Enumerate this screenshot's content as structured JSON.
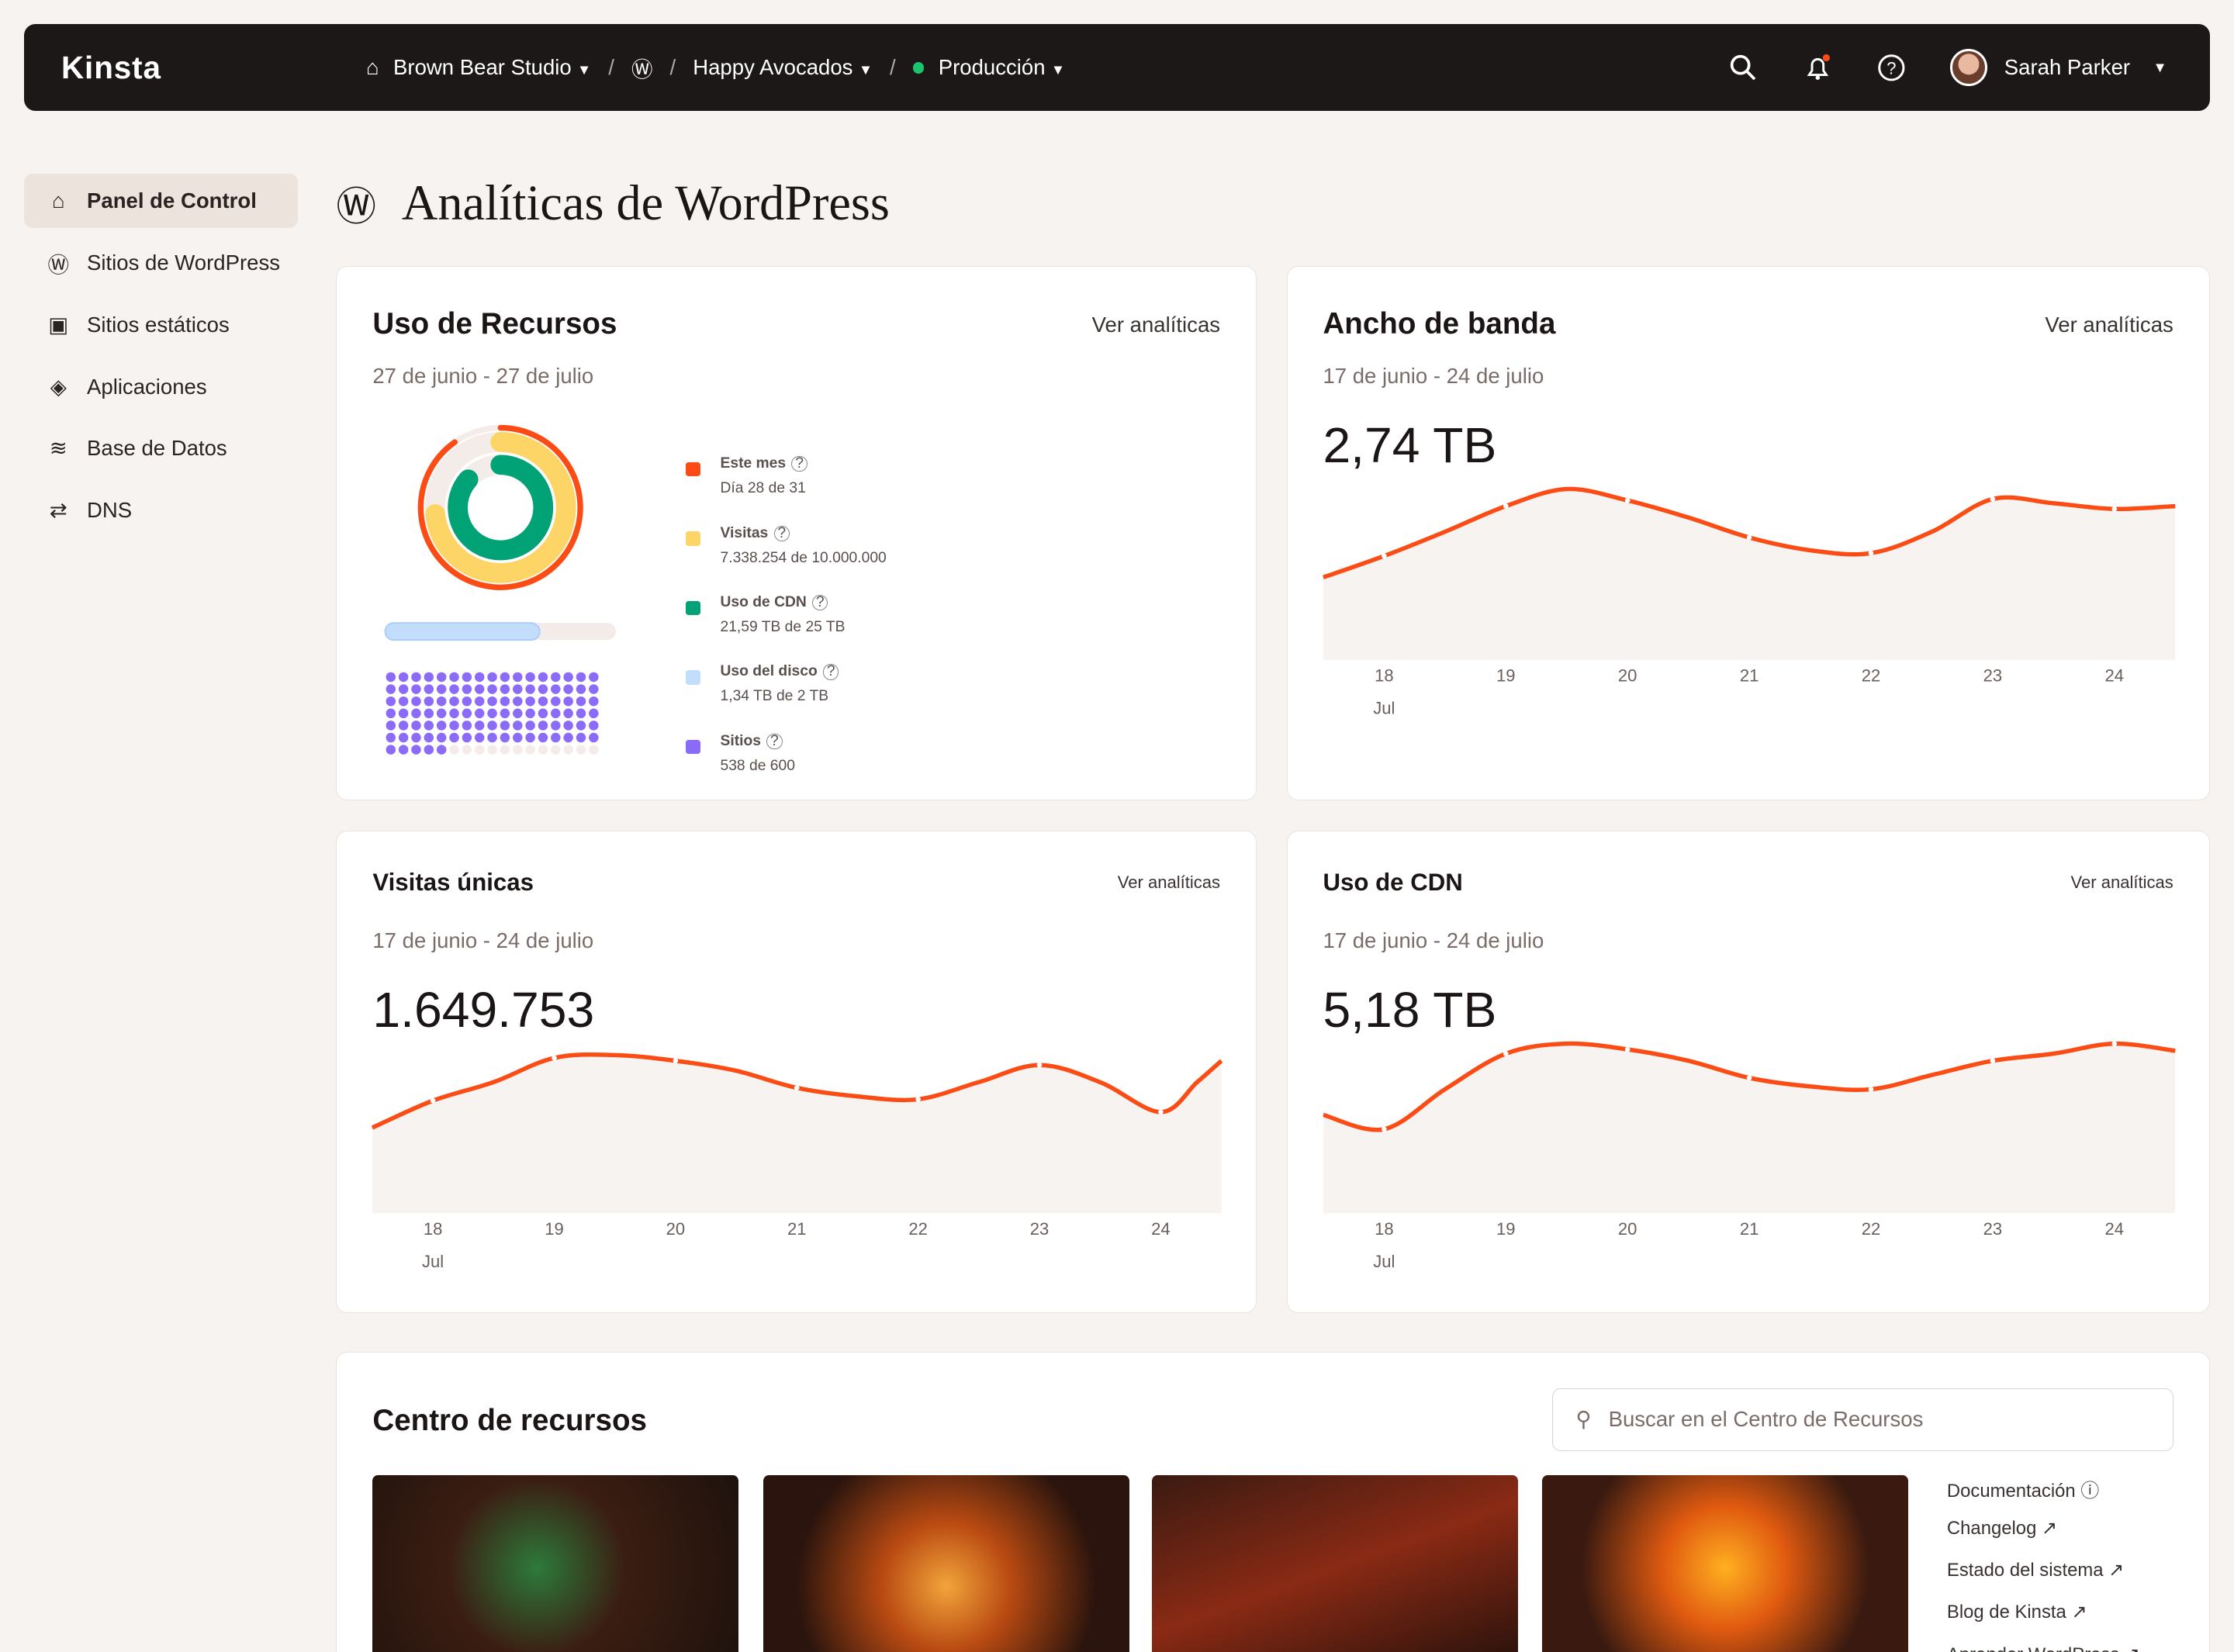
{
  "topbar": {
    "logo": "Kinsta",
    "company": "Brown Bear Studio",
    "site": "Happy Avocados",
    "env": "Producción",
    "user": "Sarah Parker"
  },
  "sidebar": {
    "items": [
      {
        "label": "Panel de Control",
        "icon": "home-icon",
        "active": true
      },
      {
        "label": "Sitios de WordPress",
        "icon": "wordpress-icon"
      },
      {
        "label": "Sitios estáticos",
        "icon": "static-site-icon"
      },
      {
        "label": "Aplicaciones",
        "icon": "layers-icon"
      },
      {
        "label": "Base de Datos",
        "icon": "database-icon"
      },
      {
        "label": "DNS",
        "icon": "dns-icon"
      }
    ]
  },
  "page": {
    "title": "Analíticas de WordPress"
  },
  "resources": {
    "title": "Uso de Recursos",
    "range": "27 de junio - 27 de julio",
    "link": "Ver analíticas",
    "legend": [
      {
        "label": "Este mes",
        "detail": "Día 28 de 31",
        "color": "#fa4c14",
        "fraction": 0.903
      },
      {
        "label": "Visitas",
        "detail": "7.338.254 de 10.000.000",
        "color": "#fdd567",
        "fraction": 0.734
      },
      {
        "label": "Uso de CDN",
        "detail": "21,59 TB de 25 TB",
        "color": "#02a277",
        "fraction": 0.864
      },
      {
        "label": "Uso del disco",
        "detail": "1,34 TB de 2 TB",
        "color": "#c3ddfd",
        "fraction": 0.67
      },
      {
        "label": "Sitios",
        "detail": "538 de 600",
        "color": "#8a6cf8",
        "fraction": 0.897
      }
    ]
  },
  "chart_data": [
    {
      "type": "area",
      "title": "Ancho de banda",
      "range": "17 de junio - 24 de julio",
      "total": "2,74 TB",
      "link": "Ver analíticas",
      "x_ticks": [
        "18",
        "19",
        "20",
        "21",
        "22",
        "23",
        "24"
      ],
      "x_sublabel": "Jul",
      "x": [
        17.5,
        18,
        18.5,
        19,
        19.5,
        20,
        20.5,
        21,
        21.5,
        22,
        22.5,
        23,
        23.5,
        24,
        24.5
      ],
      "values": [
        58,
        73,
        90,
        108,
        120,
        112,
        100,
        86,
        77,
        75,
        90,
        113,
        110,
        106,
        108
      ]
    },
    {
      "type": "area",
      "title": "Visitas únicas",
      "range": "17 de junio - 24 de julio",
      "total": "1.649.753",
      "link": "Ver analíticas",
      "x_ticks": [
        "18",
        "19",
        "20",
        "21",
        "22",
        "23",
        "24"
      ],
      "x_sublabel": "Jul",
      "x": [
        17.5,
        18,
        18.5,
        19,
        19.5,
        20,
        20.5,
        21,
        21.5,
        22,
        22.5,
        23,
        23.5,
        24,
        24.3,
        24.5
      ],
      "values": [
        60,
        79,
        92,
        109,
        111,
        107,
        100,
        88,
        82,
        80,
        92,
        104,
        92,
        71,
        92,
        107
      ]
    },
    {
      "type": "area",
      "title": "Uso de CDN",
      "range": "17 de junio - 24 de julio",
      "total": "5,18 TB",
      "link": "Ver analíticas",
      "x_ticks": [
        "18",
        "19",
        "20",
        "21",
        "22",
        "23",
        "24"
      ],
      "x_sublabel": "Jul",
      "x": [
        17.5,
        18,
        18.5,
        19,
        19.5,
        20,
        20.5,
        21,
        21.5,
        22,
        22.5,
        23,
        23.5,
        24,
        24.5
      ],
      "values": [
        69,
        59,
        87,
        112,
        119,
        115,
        107,
        95,
        89,
        87,
        97,
        107,
        112,
        119,
        114
      ]
    }
  ],
  "center": {
    "title": "Centro de recursos",
    "search_placeholder": "Buscar en el Centro de Recursos",
    "links": [
      "Documentación",
      "Changelog",
      "Estado del sistema",
      "Blog de Kinsta",
      "Aprender WordPress"
    ]
  },
  "colors": {
    "accent": "#fa4c14",
    "topbar": "#1c1817",
    "background": "#f7f3f0"
  }
}
